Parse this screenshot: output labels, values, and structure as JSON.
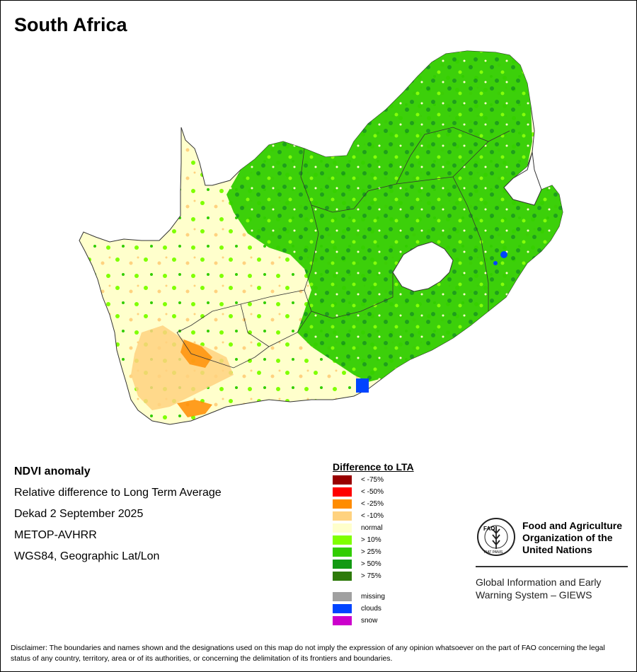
{
  "title": "South Africa",
  "info": {
    "line1": "NDVI anomaly",
    "line2": "Relative difference to Long Term Average",
    "line3": "Dekad 2 September 2025",
    "line4": "METOP-AVHRR",
    "line5": "WGS84, Geographic Lat/Lon"
  },
  "legend": {
    "title": "Difference to LTA",
    "classes": [
      {
        "label": "< -75%",
        "color": "#990000"
      },
      {
        "label": "< -50%",
        "color": "#ff0000"
      },
      {
        "label": "< -25%",
        "color": "#ff8c00"
      },
      {
        "label": "< -10%",
        "color": "#ffd27f"
      },
      {
        "label": "normal",
        "color": "#ffffcc"
      },
      {
        "label": "> 10%",
        "color": "#7fff00"
      },
      {
        "label": "> 25%",
        "color": "#32cd00"
      },
      {
        "label": "> 50%",
        "color": "#139a13"
      },
      {
        "label": "> 75%",
        "color": "#2e7a0a"
      }
    ],
    "other": [
      {
        "label": "missing",
        "color": "#a0a0a0"
      },
      {
        "label": "clouds",
        "color": "#0044ff"
      },
      {
        "label": "snow",
        "color": "#cc00cc"
      }
    ]
  },
  "fao": {
    "name_line1": "Food and Agriculture",
    "name_line2": "Organization of the",
    "name_line3": "United Nations",
    "sub_line1": "Global Information and Early",
    "sub_line2": "Warning System – GIEWS",
    "logo_top": "FAO",
    "logo_bottom": "FIAT PANIS"
  },
  "disclaimer": "Disclaimer: The boundaries and names shown and the designations used on this map do not imply the expression of any opinion whatsoever on the part of FAO concerning the legal status of any country, territory, area or of its authorities, or concerning the delimitation of its frontiers and boundaries."
}
